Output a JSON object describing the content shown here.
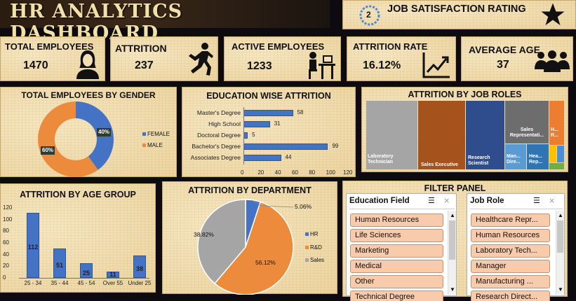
{
  "header": {
    "title": "HR ANALYTICS DASHBOARD",
    "satisfaction_label": "JOB SATISFACTION RATING",
    "satisfaction_value": "2"
  },
  "kpis": {
    "total_employees": {
      "label": "TOTAL EMPLOYEES",
      "value": "1470"
    },
    "attrition": {
      "label": "ATTRITION",
      "value": "237"
    },
    "active_employees": {
      "label": "ACTIVE EMPLOYEES",
      "value": "1233"
    },
    "attrition_rate": {
      "label": "ATTRITION RATE",
      "value": "16.12%"
    },
    "average_age": {
      "label": "AVERAGE AGE",
      "value": "37"
    }
  },
  "chart_data": [
    {
      "type": "pie",
      "title": "TOTAL EMPLOYEES BY GENDER",
      "categories": [
        "FEMALE",
        "MALE"
      ],
      "values": [
        40,
        60
      ],
      "labels": [
        "40%",
        "60%"
      ],
      "colors": [
        "#4472c4",
        "#ed8b3d"
      ],
      "legend": "right"
    },
    {
      "type": "bar",
      "title": "EDUCATION WISE ATTRITION",
      "orientation": "horizontal",
      "categories": [
        "Master's Degree",
        "High School",
        "Doctoral Degree",
        "Bachelor's Degree",
        "Associates Degree"
      ],
      "values": [
        58,
        31,
        5,
        99,
        44
      ],
      "xlim": [
        0,
        120
      ],
      "xticks": [
        "0",
        "20",
        "40",
        "60",
        "80",
        "100",
        "120"
      ]
    },
    {
      "type": "heatmap",
      "title": "ATTRITION BY JOB ROLES",
      "categories": [
        "Laboratory Technician",
        "Sales Executive",
        "Research Scientist",
        "Sales Representati...",
        "Man... Dire...",
        "Hea... Rep...",
        "H... R..."
      ],
      "colors": [
        "#a5a5a5",
        "#a5521c",
        "#2f4d8c",
        "#6d6d6d",
        "#5b9bd5",
        "#2e75b6",
        "#ed7d31"
      ]
    },
    {
      "type": "bar",
      "title": "ATTRITION BY AGE GROUP",
      "categories": [
        "25 - 34",
        "35 - 44",
        "45 - 54",
        "Over 55",
        "Under 25"
      ],
      "values": [
        112,
        51,
        25,
        11,
        38
      ],
      "ylim": [
        0,
        120
      ],
      "yticks": [
        "0",
        "20",
        "40",
        "60",
        "80",
        "100",
        "120"
      ]
    },
    {
      "type": "pie",
      "title": "ATTRITION BY DEPARTMENT",
      "categories": [
        "HR",
        "R&D",
        "Sales"
      ],
      "values": [
        5.06,
        56.12,
        38.82
      ],
      "labels": [
        "5.06%",
        "56.12%",
        "38.82%"
      ],
      "colors": [
        "#4472c4",
        "#ed8b3d",
        "#a5a5a5"
      ],
      "legend": "right"
    }
  ],
  "filter_panel": {
    "title": "FILTER PANEL",
    "education_field": {
      "label": "Education Field",
      "items": [
        "Human Resources",
        "Life Sciences",
        "Marketing",
        "Medical",
        "Other",
        "Technical Degree"
      ]
    },
    "job_role": {
      "label": "Job Role",
      "items": [
        "Healthcare Repr...",
        "Human Resources",
        "Laboratory Tech...",
        "Manager",
        "Manufacturing ...",
        "Research Direct..."
      ]
    }
  }
}
